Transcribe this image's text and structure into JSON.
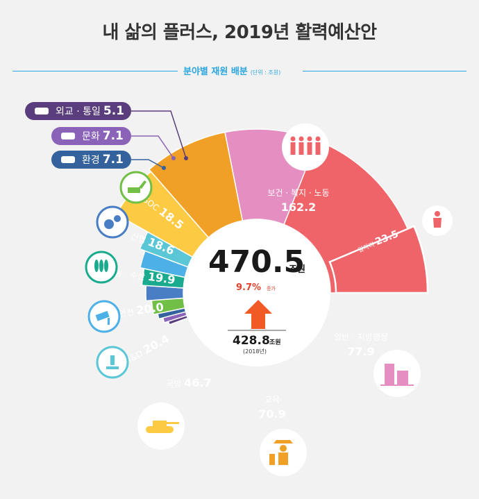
{
  "title": "내 삶의 플러스, 2019년 활력예산안",
  "subtitle": "분야별 재원 배분",
  "unit_note": "(단위 : 조원)",
  "center": {
    "total": "470.5",
    "total_unit": "조원",
    "growth": "9.7%",
    "growth_label": "증가",
    "prev_total": "428.8",
    "prev_unit": "조원",
    "prev_year": "(2018년)"
  },
  "colors": {
    "up_arrow": "#f15a24",
    "growth_text": "#e8412d",
    "subtitle_line": "#2aa6e0"
  },
  "chart_data": {
    "type": "pie",
    "title": "분야별 재원 배분",
    "unit": "조원",
    "total": 470.5,
    "slices": [
      {
        "label": "보건 · 복지 · 노동",
        "value": 162.2,
        "color": "#ee6469",
        "icon": "family-icon"
      },
      {
        "label": "일반 · 지방행정",
        "value": 77.9,
        "color": "#e58ec2",
        "icon": "building-icon"
      },
      {
        "label": "교육",
        "value": 70.9,
        "color": "#f0a026",
        "icon": "graduate-icon"
      },
      {
        "label": "국방",
        "value": 46.7,
        "color": "#fdca43",
        "icon": "tank-icon"
      },
      {
        "label": "R&D",
        "value": 20.4,
        "color": "#5bc7d6",
        "icon": "microscope-icon"
      },
      {
        "label": "안전",
        "value": 20.0,
        "color": "#4db1e8",
        "icon": "cctv-icon"
      },
      {
        "label": "농 · 수산",
        "value": 19.9,
        "color": "#1aab8f",
        "icon": "wheat-icon"
      },
      {
        "label": "산업",
        "value": 18.6,
        "color": "#4a7ec4",
        "icon": "gears-icon"
      },
      {
        "label": "SOC",
        "value": 18.5,
        "color": "#71bf44",
        "icon": "excavator-icon"
      },
      {
        "label": "환경",
        "value": 7.1,
        "color": "#34629d",
        "icon": "mountain-icon"
      },
      {
        "label": "문화",
        "value": 7.1,
        "color": "#8a62b8",
        "icon": "culture-icon"
      },
      {
        "label": "외교 · 통일",
        "value": 5.1,
        "color": "#5a3d7c",
        "icon": "handshake-icon"
      }
    ],
    "sub_slice": {
      "label": "일자리",
      "value": 23.5,
      "parent": "보건 · 복지 · 노동",
      "color": "#ee6469",
      "icon": "worker-icon"
    }
  }
}
